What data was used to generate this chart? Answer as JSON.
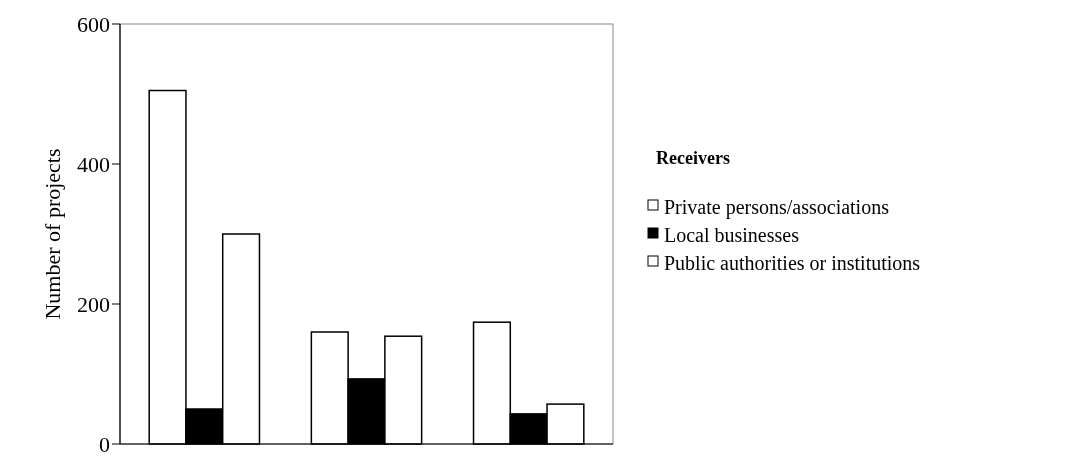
{
  "chart_data": {
    "type": "bar",
    "ylabel": "Number of projects",
    "legend_title": "Receivers",
    "categories": [
      null,
      null,
      null
    ],
    "series": [
      {
        "name": "Private persons/associations",
        "color": "#ffffff",
        "values": [
          505,
          160,
          174
        ]
      },
      {
        "name": "Local businesses",
        "color": "#000000",
        "values": [
          50,
          93,
          43
        ]
      },
      {
        "name": "Public authorities or institutions",
        "color": "#ffffff",
        "values": [
          300,
          154,
          57
        ]
      }
    ],
    "ylim": [
      0,
      600
    ],
    "yticks": [
      0,
      200,
      400,
      600
    ],
    "grid": false,
    "legend": "right"
  }
}
